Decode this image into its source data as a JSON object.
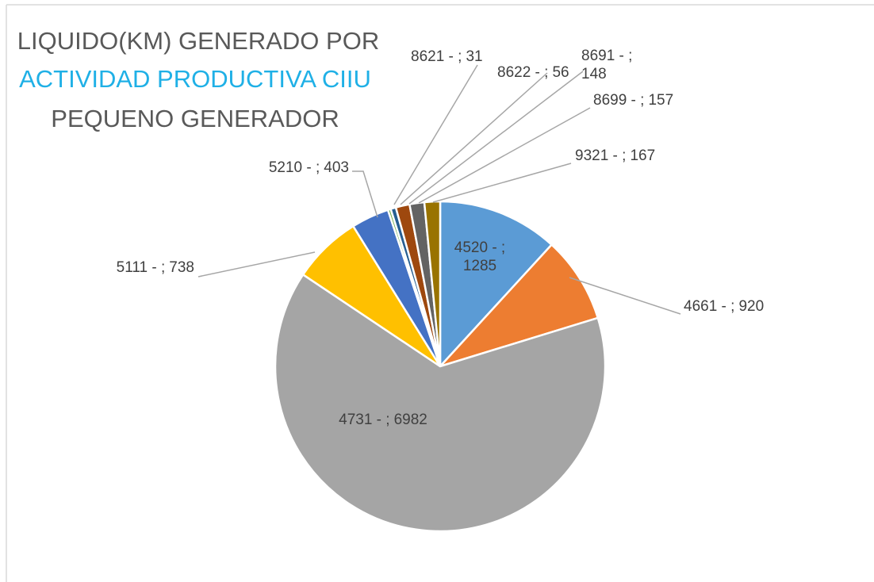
{
  "chart_data": {
    "type": "pie",
    "title": [
      "LIQUIDO(KM) GENERADO POR",
      "ACTIVIDAD PRODUCTIVA CIIU",
      "PEQUENO GENERADOR"
    ],
    "categories": [
      "4520 - ;",
      "4661 - ;",
      "4731 - ;",
      "5111 - ;",
      "5210 - ;",
      "8621 - ;",
      "8622 - ;",
      "8691 - ;",
      "8699 - ;",
      "9321 - ;"
    ],
    "values": [
      1285,
      920,
      6982,
      738,
      403,
      31,
      56,
      148,
      157,
      167
    ],
    "colors": [
      "#5b9bd5",
      "#ed7d31",
      "#a5a5a5",
      "#ffc000",
      "#4472c4",
      "#70ad47",
      "#255e91",
      "#9e480e",
      "#636363",
      "#997300"
    ]
  }
}
